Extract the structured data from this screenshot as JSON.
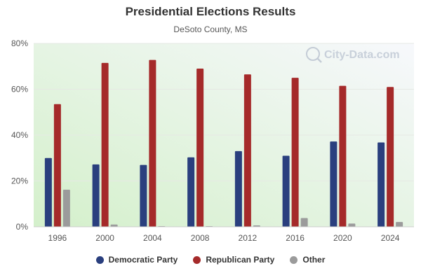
{
  "chart_data": {
    "type": "bar",
    "title": "Presidential Elections Results",
    "subtitle": "DeSoto County, MS",
    "categories": [
      "1996",
      "2000",
      "2004",
      "2008",
      "2012",
      "2016",
      "2020",
      "2024"
    ],
    "series": [
      {
        "name": "Democratic Party",
        "color": "#2a3f7e",
        "values": [
          30.0,
          27.2,
          27.0,
          30.3,
          33.0,
          31.0,
          37.2,
          36.8
        ]
      },
      {
        "name": "Republican Party",
        "color": "#a52a2a",
        "values": [
          53.5,
          71.5,
          72.8,
          69.0,
          66.5,
          65.0,
          61.5,
          61.0
        ]
      },
      {
        "name": "Other",
        "color": "#9b9b9b",
        "values": [
          16.2,
          1.0,
          0.3,
          0.3,
          0.6,
          3.8,
          1.4,
          2.1
        ]
      }
    ],
    "ylim": [
      0,
      80
    ],
    "yticks": [
      "0%",
      "20%",
      "40%",
      "60%",
      "80%"
    ],
    "ytick_values": [
      0,
      20,
      40,
      60,
      80
    ],
    "xlabel": "",
    "ylabel": "",
    "grid": true,
    "legend_position": "bottom"
  },
  "watermark": "City-Data.com",
  "colors": {
    "plot_bg_top": "#f4f6fb",
    "plot_bg_bottom": "#d8f2d0",
    "axis_text": "#555555"
  }
}
